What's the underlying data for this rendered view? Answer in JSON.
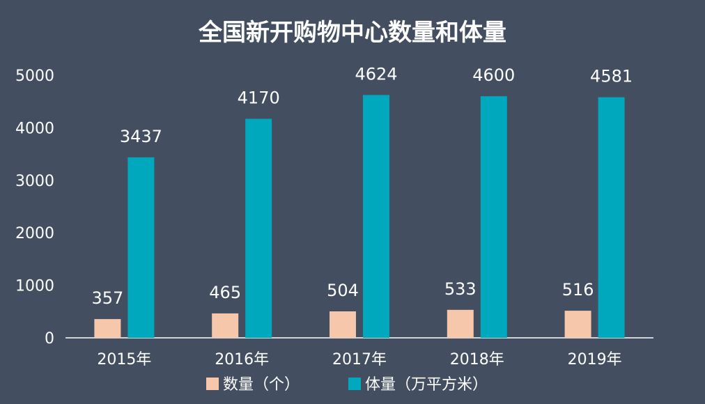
{
  "chart_data": {
    "type": "bar",
    "title": "全国新开购物中心数量和体量",
    "categories": [
      "2015年",
      "2016年",
      "2017年",
      "2018年",
      "2019年"
    ],
    "series": [
      {
        "name": "数量（个）",
        "values": [
          357,
          465,
          504,
          533,
          516
        ],
        "color": "#f7c7ab"
      },
      {
        "name": "体量（万平方米）",
        "values": [
          3437,
          4170,
          4624,
          4600,
          4581
        ],
        "color": "#00a8be"
      }
    ],
    "xlabel": "",
    "ylabel": "",
    "ylim": [
      0,
      5000
    ],
    "yticks": [
      "0",
      "1000",
      "2000",
      "3000",
      "4000",
      "5000"
    ],
    "grid": false,
    "legend": "bottom",
    "colors": {
      "background": "#434e60",
      "text": "#ffffff",
      "axis": "#ffffff"
    }
  }
}
